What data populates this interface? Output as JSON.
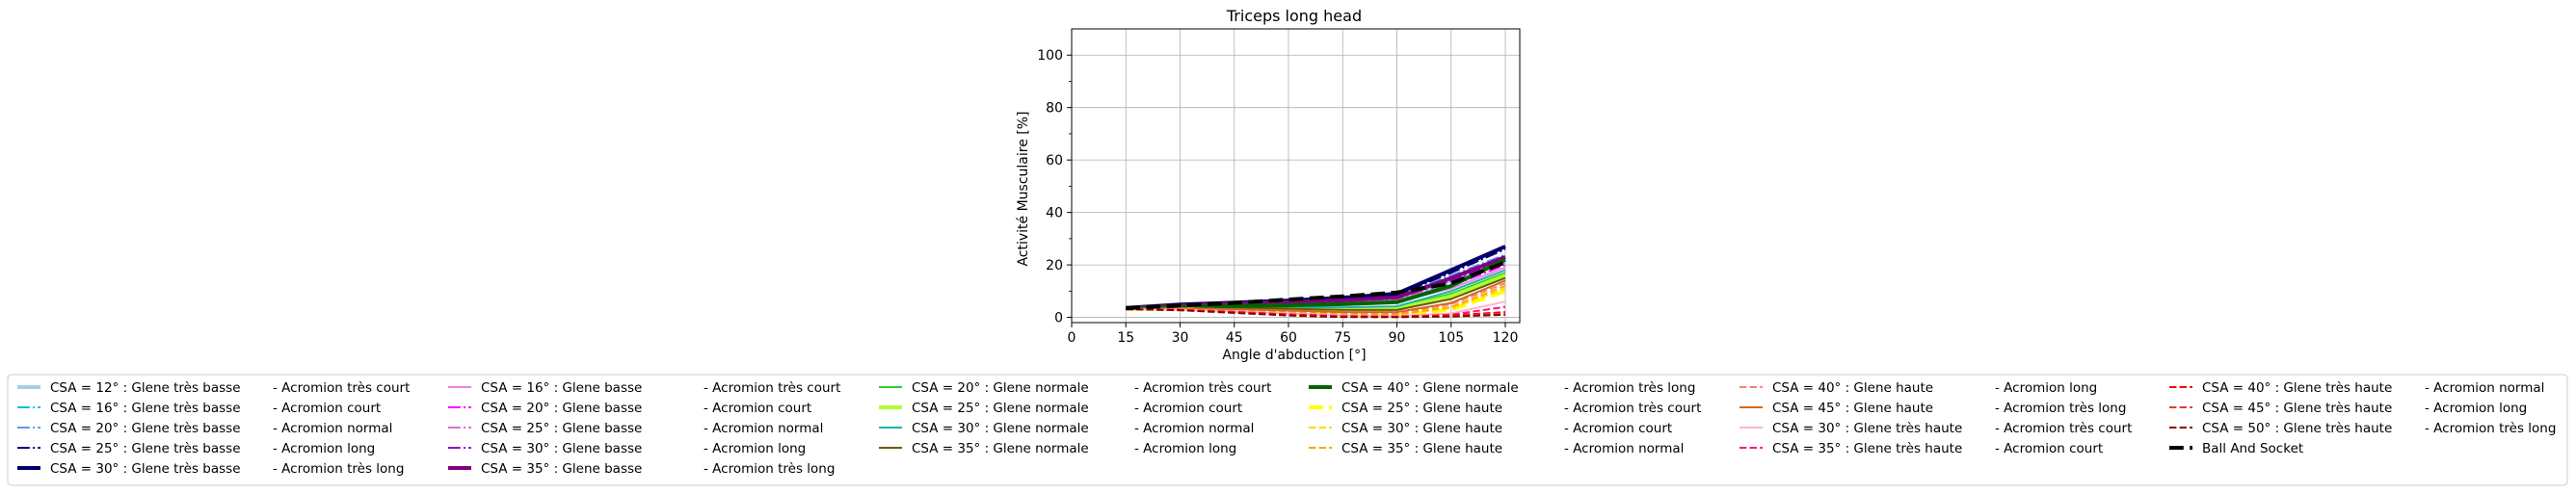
{
  "chart_data": {
    "type": "line",
    "title": "Triceps long head",
    "xlabel": "Angle d'abduction [°]",
    "ylabel": "Activité Musculaire [%]",
    "xlim": [
      0,
      124
    ],
    "ylim": [
      -2,
      110
    ],
    "xticks": [
      0,
      15,
      30,
      45,
      60,
      75,
      90,
      105,
      120
    ],
    "yticks": [
      0,
      20,
      40,
      60,
      80,
      100
    ],
    "grid": true,
    "legend_position": "bottom",
    "x": [
      15,
      30,
      45,
      60,
      75,
      90,
      105,
      120
    ],
    "series": [
      {
        "name": "CSA = 12° : Glene très basse",
        "suffix": "-  Acromion très court",
        "color": "#a6cee3",
        "dash": "solid",
        "width": 4,
        "values": [
          3.5,
          4.5,
          5,
          5.5,
          6,
          7,
          14,
          22
        ]
      },
      {
        "name": "CSA = 16° : Glene très basse",
        "suffix": "-  Acromion court",
        "color": "#17becf",
        "dash": "dashdot",
        "width": 2,
        "values": [
          3.5,
          4.5,
          5,
          5.5,
          6.5,
          7.5,
          15,
          23
        ]
      },
      {
        "name": "CSA = 20° : Glene très basse",
        "suffix": "-  Acromion normal",
        "color": "#6495ed",
        "dash": "dashdot",
        "width": 2,
        "values": [
          3.5,
          4.6,
          5.2,
          5.8,
          6.8,
          8,
          16,
          24
        ]
      },
      {
        "name": "CSA = 25° : Glene très basse",
        "suffix": "-  Acromion long",
        "color": "#000080",
        "dash": "dashdot",
        "width": 2,
        "values": [
          3.6,
          4.8,
          5.5,
          6.2,
          7.2,
          8.5,
          17,
          26
        ]
      },
      {
        "name": "CSA = 30° : Glene très basse",
        "suffix": "-  Acromion très long",
        "color": "#000066",
        "dash": "solid",
        "width": 4,
        "values": [
          3.6,
          4.9,
          5.6,
          6.4,
          7.5,
          9,
          18,
          27
        ]
      },
      {
        "name": "CSA = 16° : Glene basse",
        "suffix": "-  Acromion très court",
        "color": "#ee82ee",
        "dash": "solid",
        "width": 2,
        "values": [
          3.4,
          4.2,
          4.5,
          4.8,
          5.2,
          6,
          11,
          19
        ]
      },
      {
        "name": "CSA = 20° : Glene basse",
        "suffix": "-  Acromion court",
        "color": "#ff00ff",
        "dash": "dashdot",
        "width": 2,
        "values": [
          3.4,
          4.3,
          4.7,
          5,
          5.5,
          6.3,
          12,
          20
        ]
      },
      {
        "name": "CSA = 25° : Glene basse",
        "suffix": "-  Acromion normal",
        "color": "#da70d6",
        "dash": "dashdot",
        "width": 2,
        "values": [
          3.4,
          4.3,
          4.8,
          5.2,
          5.8,
          6.8,
          13,
          21
        ]
      },
      {
        "name": "CSA = 30° : Glene basse",
        "suffix": "-  Acromion long",
        "color": "#9400d3",
        "dash": "dashdot",
        "width": 2,
        "values": [
          3.5,
          4.4,
          5,
          5.5,
          6.2,
          7.2,
          14,
          22
        ]
      },
      {
        "name": "CSA = 35° : Glene basse",
        "suffix": "-  Acromion très long",
        "color": "#800080",
        "dash": "solid",
        "width": 4,
        "values": [
          3.5,
          4.5,
          5.2,
          5.8,
          6.5,
          7.6,
          15,
          23
        ]
      },
      {
        "name": "CSA = 20° : Glene normale",
        "suffix": "-  Acromion très court",
        "color": "#32cd32",
        "dash": "solid",
        "width": 2,
        "values": [
          3.3,
          3.8,
          3.9,
          3.8,
          3.6,
          3.8,
          9,
          17
        ]
      },
      {
        "name": "CSA = 25° : Glene normale",
        "suffix": "-  Acromion court",
        "color": "#adff2f",
        "dash": "solid",
        "width": 4,
        "values": [
          3.3,
          3.8,
          3.8,
          3.6,
          3.3,
          3.4,
          8,
          16
        ]
      },
      {
        "name": "CSA = 30° : Glene normale",
        "suffix": "-  Acromion normal",
        "color": "#20b2aa",
        "dash": "solid",
        "width": 2,
        "values": [
          3.3,
          3.9,
          4,
          4,
          3.8,
          4.2,
          10,
          18
        ]
      },
      {
        "name": "CSA = 35° : Glene normale",
        "suffix": "-  Acromion long",
        "color": "#6b5a00",
        "dash": "solid",
        "width": 2,
        "values": [
          3.3,
          3.7,
          3.6,
          3.3,
          2.8,
          2.8,
          7,
          15
        ]
      },
      {
        "name": "CSA = 40° : Glene normale",
        "suffix": "-  Acromion très long",
        "color": "#006400",
        "dash": "solid",
        "width": 4,
        "values": [
          3.4,
          4,
          4.3,
          4.6,
          5,
          5.8,
          12,
          22
        ]
      },
      {
        "name": "CSA = 25° : Glene haute",
        "suffix": "-  Acromion très court",
        "color": "#ffff00",
        "dash": "dashed",
        "width": 4,
        "values": [
          3.2,
          3.2,
          2.5,
          1.8,
          1,
          0.8,
          3,
          10
        ]
      },
      {
        "name": "CSA = 30° : Glene haute",
        "suffix": "-  Acromion court",
        "color": "#ffd700",
        "dash": "dashed",
        "width": 2,
        "values": [
          3.2,
          3.3,
          2.7,
          2,
          1.2,
          1,
          3.5,
          11
        ]
      },
      {
        "name": "CSA = 35° : Glene haute",
        "suffix": "-  Acromion normal",
        "color": "#ffa500",
        "dash": "dashed",
        "width": 2,
        "values": [
          3.2,
          3.3,
          2.8,
          2.1,
          1.4,
          1.2,
          4,
          12
        ]
      },
      {
        "name": "CSA = 40° : Glene haute",
        "suffix": "-  Acromion long",
        "color": "#fa8072",
        "dash": "dashed",
        "width": 2,
        "values": [
          3.2,
          3.4,
          3,
          2.4,
          1.8,
          1.6,
          5,
          13
        ]
      },
      {
        "name": "CSA = 45° : Glene haute",
        "suffix": "-  Acromion très long",
        "color": "#d2691e",
        "dash": "solid",
        "width": 2,
        "values": [
          3.2,
          3.4,
          3.1,
          2.6,
          2,
          2,
          5.5,
          14
        ]
      },
      {
        "name": "CSA = 30° : Glene très haute",
        "suffix": "-  Acromion très court",
        "color": "#ffb6c1",
        "dash": "solid",
        "width": 2,
        "values": [
          3.1,
          3,
          2.3,
          1.5,
          0.8,
          0.5,
          1.5,
          6
        ]
      },
      {
        "name": "CSA = 35° : Glene très haute",
        "suffix": "-  Acromion court",
        "color": "#ff1493",
        "dash": "dashed",
        "width": 2,
        "values": [
          3.1,
          2.9,
          2.1,
          1.2,
          0.5,
          0.3,
          1,
          4
        ]
      },
      {
        "name": "CSA = 40° : Glene très haute",
        "suffix": "-  Acromion normal",
        "color": "#ff0000",
        "dash": "dashed",
        "width": 2,
        "values": [
          3.1,
          2.8,
          1.9,
          1,
          0.3,
          0.2,
          0.8,
          2
        ]
      },
      {
        "name": "CSA = 45° : Glene très haute",
        "suffix": "-  Acromion long",
        "color": "#e03c31",
        "dash": "dashed",
        "width": 2,
        "values": [
          3.1,
          2.8,
          1.8,
          0.8,
          0.2,
          0.1,
          0.5,
          1.5
        ]
      },
      {
        "name": "CSA = 50° : Glene très haute",
        "suffix": "-  Acromion très long",
        "color": "#8b0000",
        "dash": "dashed",
        "width": 2,
        "values": [
          3.1,
          2.7,
          1.7,
          0.7,
          0.1,
          0.1,
          0.3,
          1
        ]
      },
      {
        "name": "Ball And Socket",
        "suffix": "",
        "color": "#000000",
        "dash": "dashed",
        "width": 4,
        "values": [
          3.5,
          4.5,
          5.5,
          6.8,
          8,
          9.5,
          13,
          21
        ]
      }
    ]
  }
}
